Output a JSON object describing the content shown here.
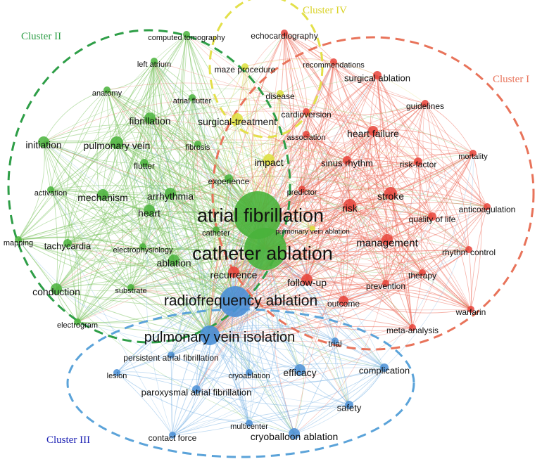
{
  "clusters": [
    {
      "id": "I",
      "label": "Cluster I",
      "color": "#E8735A"
    },
    {
      "id": "II",
      "label": "Cluster II",
      "color": "#2E9E47"
    },
    {
      "id": "III",
      "label": "Cluster III",
      "color": "#5BA3D9",
      "label_color": "#1F24B5"
    },
    {
      "id": "IV",
      "label": "Cluster IV",
      "color": "#E3E04A",
      "label_color": "#D9D226"
    }
  ],
  "node_colors": {
    "I": "#E8433A",
    "II": "#49B33B",
    "III": "#4A8FD6",
    "IV": "#DDE03C"
  },
  "edge_colors": {
    "I": "#EE6F5E",
    "II": "#7DC462",
    "III": "#7FB6E6",
    "IV": "#E4E27A"
  },
  "nodes": [
    {
      "id": "atrial-fibrillation",
      "label": "atrial fibrillation",
      "cluster": "II"
    },
    {
      "id": "catheter-ablation",
      "label": "catheter ablation",
      "cluster": "II"
    },
    {
      "id": "radiofrequency-ablation",
      "label": "radiofrequency ablation",
      "cluster": "III"
    },
    {
      "id": "pulmonary-vein-isolation",
      "label": "pulmonary vein isolation",
      "cluster": "III"
    },
    {
      "id": "management",
      "label": "management",
      "cluster": "I"
    },
    {
      "id": "risk",
      "label": "risk",
      "cluster": "I"
    },
    {
      "id": "stroke",
      "label": "stroke",
      "cluster": "I"
    },
    {
      "id": "heart-failure",
      "label": "heart failure",
      "cluster": "I"
    },
    {
      "id": "sinus-rhythm",
      "label": "sinus rhythm",
      "cluster": "I"
    },
    {
      "id": "risk-factor",
      "label": "risk-factor",
      "cluster": "I"
    },
    {
      "id": "quality-of-life",
      "label": "quality of life",
      "cluster": "I"
    },
    {
      "id": "anticoagulation",
      "label": "anticoagulation",
      "cluster": "I"
    },
    {
      "id": "rhythm-control",
      "label": "rhythm control",
      "cluster": "I"
    },
    {
      "id": "therapy",
      "label": "therapy",
      "cluster": "I"
    },
    {
      "id": "prevention",
      "label": "prevention",
      "cluster": "I"
    },
    {
      "id": "outcome",
      "label": "outcome",
      "cluster": "I"
    },
    {
      "id": "warfarin",
      "label": "warfarin",
      "cluster": "I"
    },
    {
      "id": "meta-analysis",
      "label": "meta-analysis",
      "cluster": "I"
    },
    {
      "id": "mortality",
      "label": "mortality",
      "cluster": "I"
    },
    {
      "id": "guidelines",
      "label": "guidelines",
      "cluster": "I"
    },
    {
      "id": "surgical-ablation",
      "label": "surgical ablation",
      "cluster": "I"
    },
    {
      "id": "recommendations",
      "label": "recommendations",
      "cluster": "I"
    },
    {
      "id": "echocardiography",
      "label": "echocardiography",
      "cluster": "I"
    },
    {
      "id": "cardioversion",
      "label": "cardioversion",
      "cluster": "I"
    },
    {
      "id": "association",
      "label": "association",
      "cluster": "I"
    },
    {
      "id": "predictor",
      "label": "predictor",
      "cluster": "I"
    },
    {
      "id": "recurrence",
      "label": "recurrence",
      "cluster": "I"
    },
    {
      "id": "follow-up",
      "label": "follow-up",
      "cluster": "I"
    },
    {
      "id": "computed-tomography",
      "label": "computed tomography",
      "cluster": "II"
    },
    {
      "id": "left-atrium",
      "label": "left atrium",
      "cluster": "II"
    },
    {
      "id": "anatomy",
      "label": "anatomy",
      "cluster": "II"
    },
    {
      "id": "atrial-flutter",
      "label": "atrial flutter",
      "cluster": "II"
    },
    {
      "id": "fibrillation",
      "label": "fibrillation",
      "cluster": "II"
    },
    {
      "id": "initiation",
      "label": "initiation",
      "cluster": "II"
    },
    {
      "id": "pulmonary-vein",
      "label": "pulmonary vein",
      "cluster": "II"
    },
    {
      "id": "fibrosis",
      "label": "fibrosis",
      "cluster": "II"
    },
    {
      "id": "flutter",
      "label": "flutter",
      "cluster": "II"
    },
    {
      "id": "activation",
      "label": "activation",
      "cluster": "II"
    },
    {
      "id": "mechanism",
      "label": "mechanism",
      "cluster": "II"
    },
    {
      "id": "arrhythmia",
      "label": "arrhythmia",
      "cluster": "II"
    },
    {
      "id": "heart",
      "label": "heart",
      "cluster": "II"
    },
    {
      "id": "mapping",
      "label": "mapping",
      "cluster": "II"
    },
    {
      "id": "tachycardia",
      "label": "tachycardia",
      "cluster": "II"
    },
    {
      "id": "electrophysiology",
      "label": "electrophysiology",
      "cluster": "II"
    },
    {
      "id": "ablation",
      "label": "ablation",
      "cluster": "II"
    },
    {
      "id": "conduction",
      "label": "conduction",
      "cluster": "II"
    },
    {
      "id": "substrate",
      "label": "substrate",
      "cluster": "II"
    },
    {
      "id": "electrogram",
      "label": "electrogram",
      "cluster": "II"
    },
    {
      "id": "catheter",
      "label": "catheter",
      "cluster": "II"
    },
    {
      "id": "experience",
      "label": "experience",
      "cluster": "II"
    },
    {
      "id": "maze-procedure",
      "label": "maze procedure",
      "cluster": "IV"
    },
    {
      "id": "disease",
      "label": "disease",
      "cluster": "IV"
    },
    {
      "id": "surgical-treatment",
      "label": "surgical-treatment",
      "cluster": "IV"
    },
    {
      "id": "impact",
      "label": "impact",
      "cluster": "IV"
    },
    {
      "id": "pulmonary-vein-ablation",
      "label": "pulmonary vein ablation",
      "cluster": "IV"
    },
    {
      "id": "persistent-atrial-fibrillation",
      "label": "persistent atrial fibrillation",
      "cluster": "III"
    },
    {
      "id": "lesion",
      "label": "lesion",
      "cluster": "III"
    },
    {
      "id": "cryoablation",
      "label": "cryoablation",
      "cluster": "III"
    },
    {
      "id": "efficacy",
      "label": "efficacy",
      "cluster": "III"
    },
    {
      "id": "trial",
      "label": "trial",
      "cluster": "III"
    },
    {
      "id": "complication",
      "label": "complication",
      "cluster": "III"
    },
    {
      "id": "paroxysmal-atrial-fibrillation",
      "label": "paroxysmal atrial fibrillation",
      "cluster": "III"
    },
    {
      "id": "safety",
      "label": "safety",
      "cluster": "III"
    },
    {
      "id": "multicenter",
      "label": "multicenter",
      "cluster": "III"
    },
    {
      "id": "contact-force",
      "label": "contact force",
      "cluster": "III"
    },
    {
      "id": "cryoballoon-ablation",
      "label": "cryoballoon ablation",
      "cluster": "III"
    }
  ]
}
